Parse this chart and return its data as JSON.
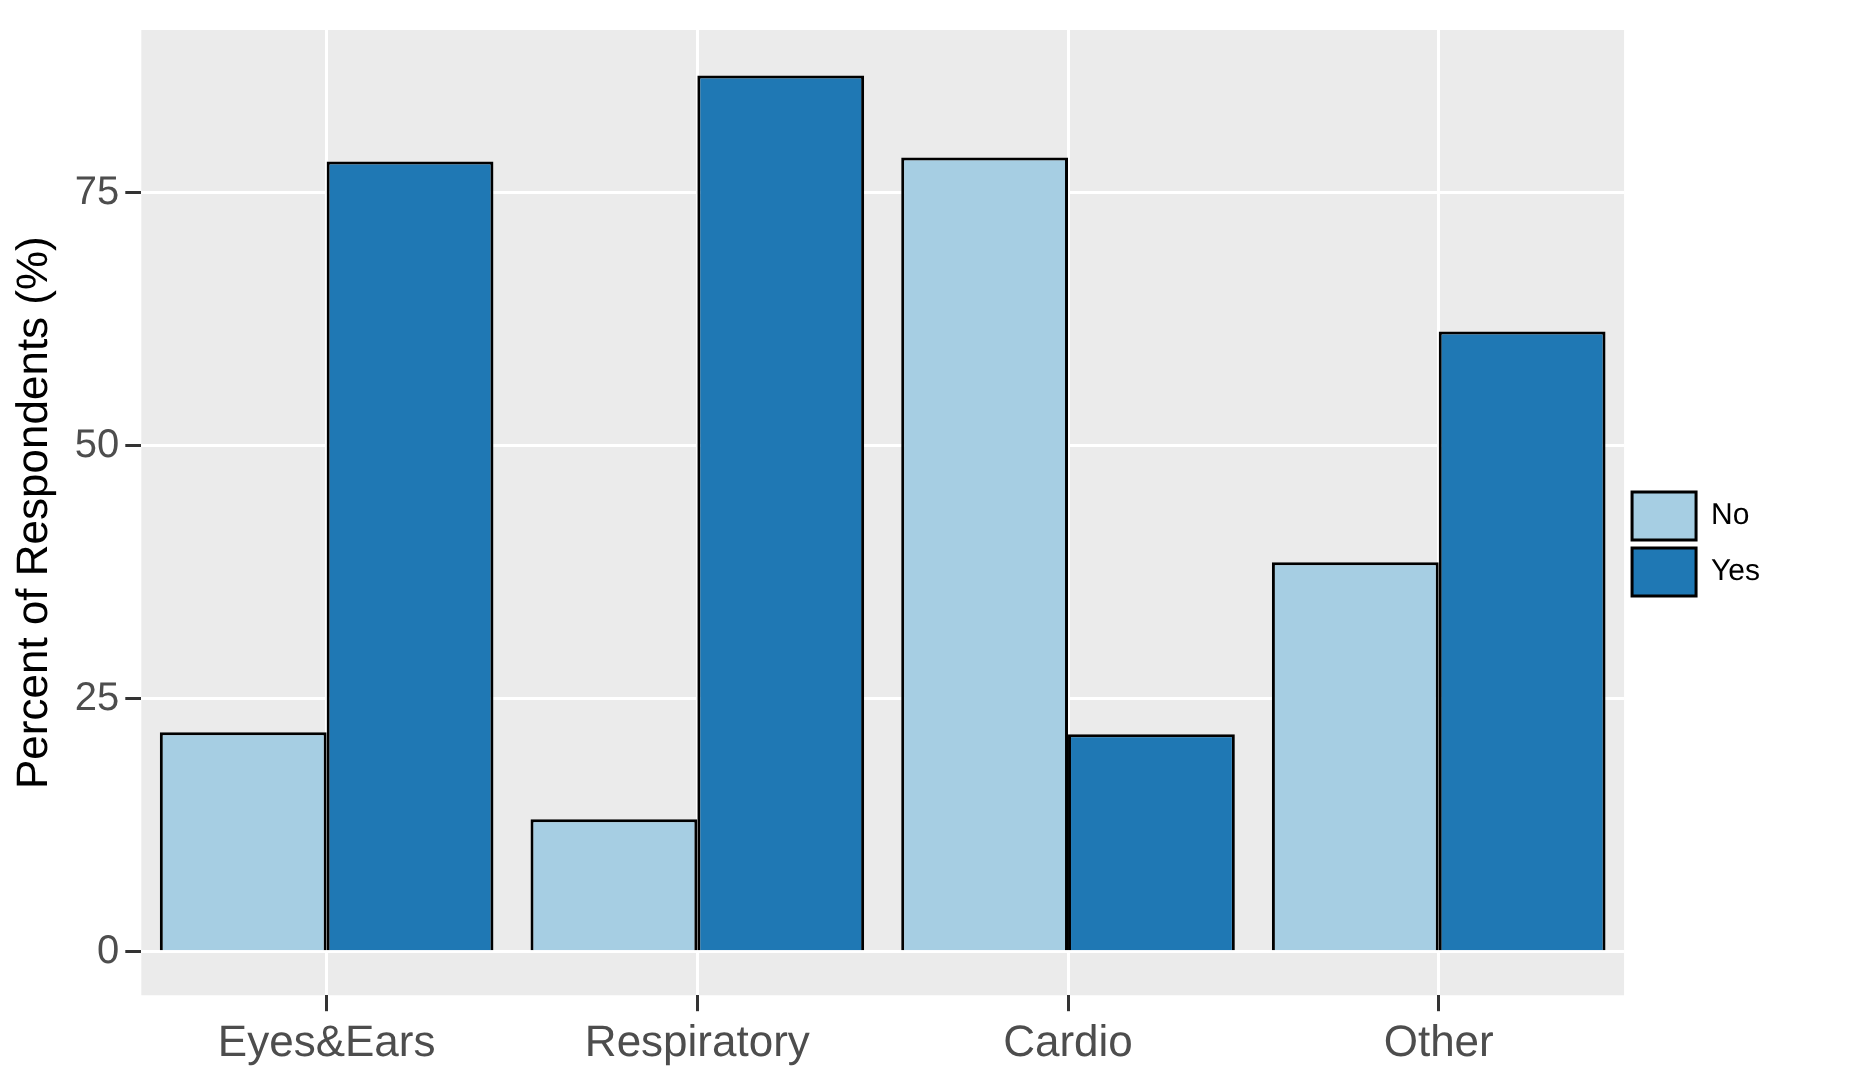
{
  "chart_data": {
    "type": "bar",
    "ylabel": "Percent of Respondents (%)",
    "categories": [
      "Eyes&Ears",
      "Respiratory",
      "Cardio",
      "Other"
    ],
    "series": [
      {
        "name": "No",
        "color": "#a6cee3",
        "values": [
          21.7,
          13.1,
          78.5,
          38.5
        ]
      },
      {
        "name": "Yes",
        "color": "#1f78b4",
        "values": [
          78.1,
          86.6,
          21.5,
          61.3
        ]
      }
    ],
    "ylim": [
      -4.3,
      91.1
    ],
    "yticks": [
      0,
      25,
      50,
      75
    ],
    "grid": true,
    "legend": "right"
  }
}
